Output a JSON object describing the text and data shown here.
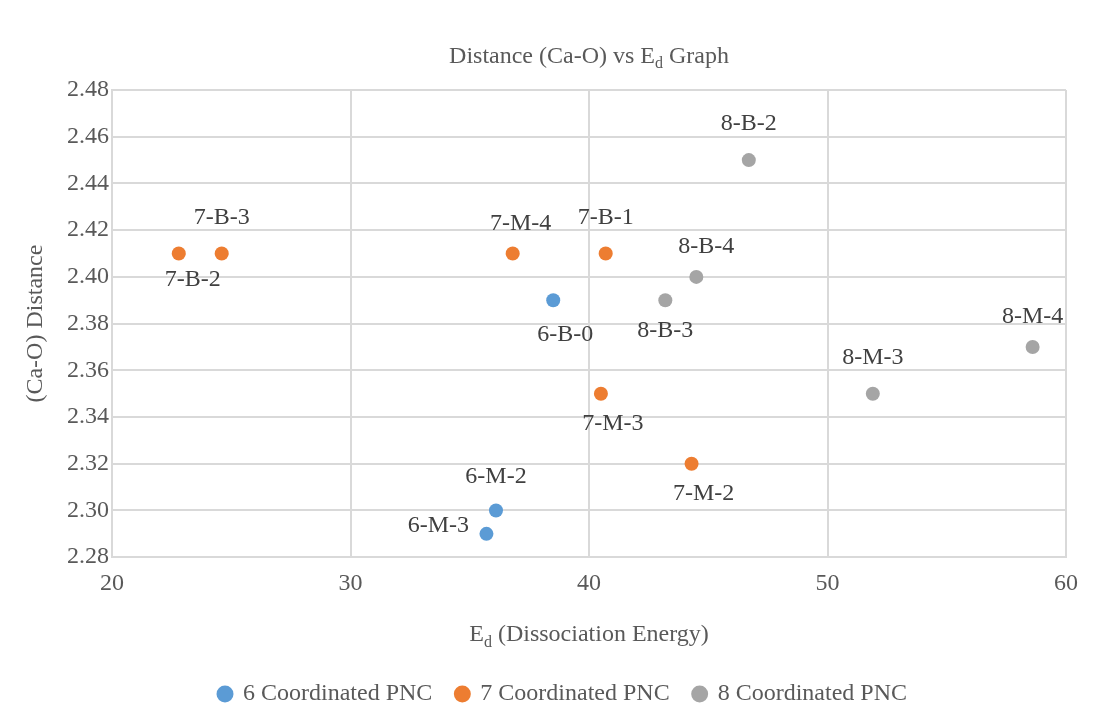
{
  "chart_data": {
    "type": "scatter",
    "title": "Distance (Ca-O) vs E$_{d}$ Graph",
    "xlabel": "E$_{d}$ (Dissociation Energy)",
    "ylabel": "(Ca-O) Distance",
    "xlim": [
      20,
      60
    ],
    "xticks": [
      20,
      30,
      40,
      50,
      60
    ],
    "ylim": [
      2.28,
      2.48
    ],
    "yticks": [
      {
        "value": 2.28,
        "label": "2.28"
      },
      {
        "value": 2.3,
        "label": "2.30"
      },
      {
        "value": 2.32,
        "label": "2.32"
      },
      {
        "value": 2.34,
        "label": "2.34"
      },
      {
        "value": 2.36,
        "label": "2.36"
      },
      {
        "value": 2.38,
        "label": "2.38"
      },
      {
        "value": 2.4,
        "label": "2.40"
      },
      {
        "value": 2.42,
        "label": "2.42"
      },
      {
        "value": 2.44,
        "label": "2.44"
      },
      {
        "value": 2.46,
        "label": "2.46"
      },
      {
        "value": 2.48,
        "label": "2.48"
      }
    ],
    "grid": true,
    "legend": "bottom",
    "marker": "circle",
    "series": [
      {
        "name": "6 Coordinated PNC",
        "color": "#5b9bd5",
        "x": [
          38.5,
          36.1,
          35.7
        ],
        "values": [
          2.39,
          2.3,
          2.29
        ],
        "value_labels": [
          "6-B-0",
          "6-M-2",
          "6-M-3"
        ]
      },
      {
        "name": "7 Coordinated PNC",
        "color": "#ed7d31",
        "x": [
          22.8,
          24.6,
          36.8,
          40.7,
          40.5,
          44.3
        ],
        "values": [
          2.41,
          2.41,
          2.41,
          2.41,
          2.35,
          2.32
        ],
        "value_labels": [
          "7-B-2",
          "7-B-3",
          "7-M-4",
          "7-B-1",
          "7-M-3",
          "7-M-2"
        ]
      },
      {
        "name": "8 Coordinated PNC",
        "color": "#a5a5a5",
        "x": [
          46.7,
          44.5,
          43.2,
          51.9,
          58.6
        ],
        "values": [
          2.45,
          2.4,
          2.39,
          2.35,
          2.37
        ],
        "value_labels": [
          "8-B-2",
          "8-B-4",
          "8-B-3",
          "8-M-3",
          "8-M-4"
        ]
      }
    ]
  }
}
